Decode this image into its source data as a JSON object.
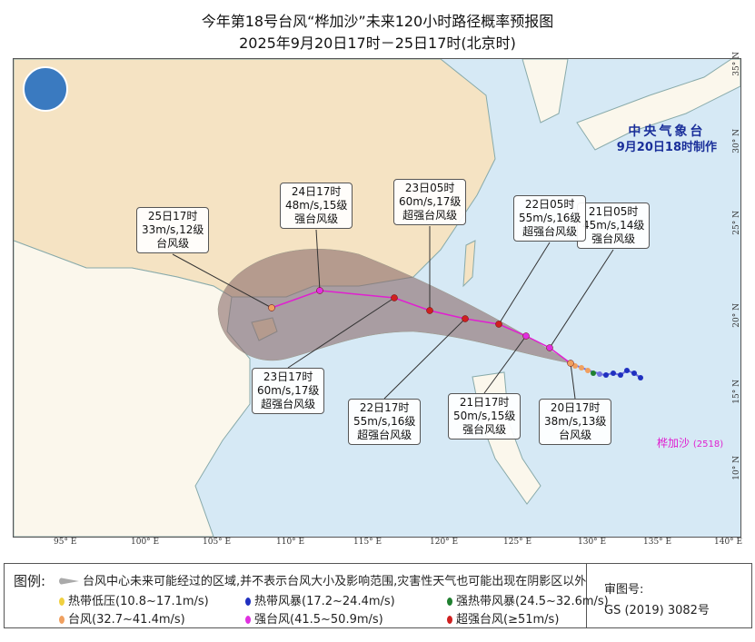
{
  "title": {
    "line1": "今年第18号台风“桦加沙”未来120小时路径概率预报图",
    "line2": "2025年9月20日17时－25日17时(北京时)"
  },
  "issuer": {
    "name": "中央气象台",
    "made": "9月20日18时制作"
  },
  "typhoon": {
    "name": "桦加沙",
    "number": "(2518)"
  },
  "axes": {
    "lon": [
      "95° E",
      "100° E",
      "105° E",
      "110° E",
      "115° E",
      "120° E",
      "125° E",
      "130° E",
      "135° E",
      "140° E"
    ],
    "lat": [
      "35° N",
      "30° N",
      "25° N",
      "20° N",
      "15° N",
      "10° N"
    ]
  },
  "forecast": [
    {
      "time": "20日17时",
      "wind": "38m/s,13级",
      "grade": "台风级",
      "color": "#f0a060"
    },
    {
      "time": "21日05时",
      "wind": "45m/s,14级",
      "grade": "强台风级",
      "color": "#e030e0"
    },
    {
      "time": "21日17时",
      "wind": "50m/s,15级",
      "grade": "强台风级",
      "color": "#e030e0"
    },
    {
      "time": "22日05时",
      "wind": "55m/s,16级",
      "grade": "超强台风级",
      "color": "#d02020"
    },
    {
      "time": "22日17时",
      "wind": "55m/s,16级",
      "grade": "超强台风级",
      "color": "#d02020"
    },
    {
      "time": "23日05时",
      "wind": "60m/s,17级",
      "grade": "超强台风级",
      "color": "#d02020"
    },
    {
      "time": "23日17时",
      "wind": "60m/s,17级",
      "grade": "超强台风级",
      "color": "#d02020"
    },
    {
      "time": "24日17时",
      "wind": "48m/s,15级",
      "grade": "强台风级",
      "color": "#e030e0"
    },
    {
      "time": "25日17时",
      "wind": "33m/s,12级",
      "grade": "台风级",
      "color": "#f0a060"
    }
  ],
  "legend": {
    "title": "图例:",
    "cone": "台风中心未来可能经过的区域,并不表示台风大小及影响范围,灾害性天气也可能出现在阴影区以外",
    "items": [
      {
        "label": "热带低压(10.8~17.1m/s)",
        "color": "#f0d040"
      },
      {
        "label": "热带风暴(17.2~24.4m/s)",
        "color": "#2030c0"
      },
      {
        "label": "强热带风暴(24.5~32.6m/s)",
        "color": "#208030"
      },
      {
        "label": "台风(32.7~41.4m/s)",
        "color": "#f0a060"
      },
      {
        "label": "强台风(41.5~50.9m/s)",
        "color": "#e030e0"
      },
      {
        "label": "超强台风(≥51m/s)",
        "color": "#d02020"
      }
    ],
    "review_label": "审图号:",
    "review_no": "GS (2019) 3082号"
  }
}
